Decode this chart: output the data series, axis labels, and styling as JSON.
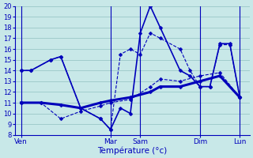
{
  "background_color": "#c8e8e8",
  "grid_color": "#90c0c0",
  "line_color": "#0000bb",
  "xlabel": "Température (°c)",
  "ylim": [
    8,
    20
  ],
  "yticks": [
    8,
    9,
    10,
    11,
    12,
    13,
    14,
    15,
    16,
    17,
    18,
    19,
    20
  ],
  "x_day_labels": [
    "Ven",
    "Mar",
    "Sam",
    "Dim",
    "Lun"
  ],
  "x_day_positions": [
    0,
    4.5,
    6,
    9,
    11
  ],
  "xlim": [
    -0.3,
    11.5
  ],
  "lines": [
    {
      "x": [
        0,
        0.5,
        1.5,
        2,
        3,
        4,
        4.5,
        5,
        5.5,
        6,
        6.5,
        7,
        8,
        8.5,
        9,
        9.5,
        10,
        10.5,
        11
      ],
      "y": [
        14,
        14,
        15,
        15.3,
        10.5,
        9.5,
        8.5,
        10.5,
        10,
        17.5,
        20,
        18,
        14,
        13.5,
        12.5,
        12.5,
        16.5,
        16.5,
        11.5
      ],
      "style": "-",
      "marker": "D",
      "markersize": 2.5,
      "linewidth": 1.2
    },
    {
      "x": [
        0,
        0.5,
        1.5,
        2,
        3,
        4,
        4.5,
        5,
        5.5,
        6,
        6.5,
        7,
        8,
        8.5,
        9,
        9.5,
        10,
        10.5,
        11
      ],
      "y": [
        14,
        14,
        15,
        15.3,
        10.5,
        9.5,
        8.5,
        15.5,
        16,
        15.5,
        17.5,
        17,
        16,
        14,
        12.5,
        12.5,
        16.4,
        16.4,
        11.5
      ],
      "style": "--",
      "marker": "D",
      "markersize": 2.5,
      "linewidth": 0.8
    },
    {
      "x": [
        0,
        1,
        2,
        3,
        4,
        4.5,
        5.5,
        6.5,
        7,
        8,
        9,
        10,
        11
      ],
      "y": [
        11,
        11,
        10.8,
        10.5,
        11,
        11.2,
        11.5,
        12,
        12.5,
        12.5,
        13,
        13.5,
        11.5
      ],
      "style": "-",
      "marker": "D",
      "markersize": 2.5,
      "linewidth": 2.2
    },
    {
      "x": [
        0,
        1,
        2,
        3,
        4,
        4.5,
        5.5,
        6.5,
        7,
        8,
        9,
        10,
        11
      ],
      "y": [
        11,
        11,
        9.5,
        10.2,
        10.7,
        11,
        11.3,
        12.5,
        13.2,
        13,
        13.5,
        13.8,
        11.5
      ],
      "style": "--",
      "marker": "D",
      "markersize": 2.5,
      "linewidth": 0.8
    }
  ]
}
